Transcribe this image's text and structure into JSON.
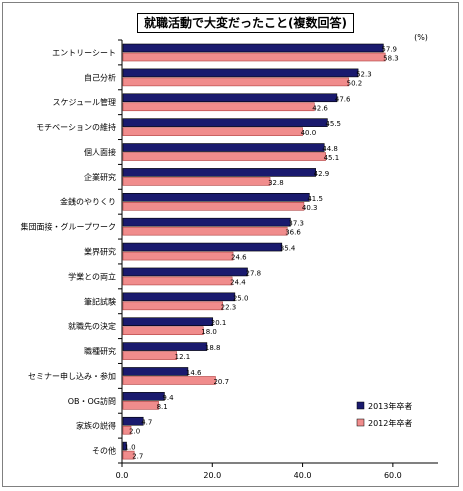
{
  "chart_data": {
    "type": "bar",
    "orientation": "horizontal",
    "title": "就職活動で大変だったこと(複数回答)",
    "unit": "(%)",
    "categories": [
      "エントリーシート",
      "自己分析",
      "スケジュール管理",
      "モチベーションの維持",
      "個人面接",
      "企業研究",
      "金銭のやりくり",
      "集団面接・グループワーク",
      "業界研究",
      "学業との両立",
      "筆記試験",
      "就職先の決定",
      "職種研究",
      "セミナー申し込み・参加",
      "OB・OG訪問",
      "家族の説得",
      "その他"
    ],
    "series": [
      {
        "name": "2013年卒者",
        "color": "#1a1a6e",
        "values": [
          57.9,
          52.3,
          47.6,
          45.5,
          44.8,
          42.9,
          41.5,
          37.3,
          35.4,
          27.8,
          25.0,
          20.1,
          18.8,
          14.6,
          9.4,
          4.7,
          1.0
        ]
      },
      {
        "name": "2012年卒者",
        "color": "#f08c8c",
        "values": [
          58.3,
          50.2,
          42.6,
          40.0,
          45.1,
          32.8,
          40.3,
          36.6,
          24.6,
          24.4,
          22.3,
          18.0,
          12.1,
          20.7,
          8.1,
          2.0,
          2.7
        ]
      }
    ],
    "value_labels": [
      [
        "57.9",
        "52.3",
        "47.6",
        "45.5",
        "44.8",
        "42.9",
        "41.5",
        "37.3",
        "35.4",
        "27.8",
        "25.0",
        "20.1",
        "18.8",
        "14.6",
        "9.4",
        "4.7",
        "1.0"
      ],
      [
        "58.3",
        "50.2",
        "42.6",
        "40.0",
        "45.1",
        "32.8",
        "40.3",
        "36.6",
        "24.6",
        "24.4",
        "22.3",
        "18.0",
        "12.1",
        "20.7",
        "8.1",
        "2.0",
        "2.7"
      ]
    ],
    "xlim": [
      0,
      70
    ],
    "xticks": [
      0,
      20,
      40,
      60
    ],
    "xtick_labels": [
      "0.0",
      "20.0",
      "40.0",
      "60.0"
    ],
    "grid": false,
    "legend_position": "bottom-right"
  }
}
